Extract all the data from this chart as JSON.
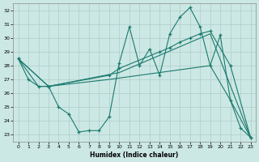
{
  "xlabel": "Humidex (Indice chaleur)",
  "bg_color": "#cce8e4",
  "grid_color": "#b0ccc8",
  "line_color": "#1a7a6e",
  "xlim": [
    -0.5,
    23.5
  ],
  "ylim": [
    22.5,
    32.5
  ],
  "xticks": [
    0,
    1,
    2,
    3,
    4,
    5,
    6,
    7,
    8,
    9,
    10,
    11,
    12,
    13,
    14,
    15,
    16,
    17,
    18,
    19,
    20,
    21,
    22,
    23
  ],
  "yticks": [
    23,
    24,
    25,
    26,
    27,
    28,
    29,
    30,
    31,
    32
  ],
  "line1_x": [
    0,
    1,
    2,
    3,
    4,
    5,
    6,
    7,
    8,
    9,
    10,
    11,
    12,
    13,
    14,
    15,
    16,
    17,
    18,
    19,
    20,
    21,
    22,
    23
  ],
  "line1_y": [
    28.5,
    27.0,
    26.5,
    26.5,
    25.0,
    24.5,
    23.2,
    23.3,
    23.3,
    24.3,
    28.2,
    30.8,
    28.0,
    29.2,
    27.3,
    30.3,
    31.5,
    32.2,
    30.8,
    28.0,
    30.2,
    25.5,
    23.5,
    22.8
  ],
  "line2_x": [
    0,
    2,
    3,
    9,
    19,
    21,
    23
  ],
  "line2_y": [
    28.5,
    26.5,
    26.5,
    27.0,
    28.0,
    25.5,
    22.8
  ],
  "line3_x": [
    0,
    3,
    9,
    10,
    14,
    15,
    16,
    17,
    18,
    19,
    21,
    23
  ],
  "line3_y": [
    28.5,
    26.5,
    27.3,
    27.8,
    29.0,
    29.3,
    29.7,
    30.0,
    30.3,
    30.5,
    28.0,
    22.8
  ],
  "line4_x": [
    0,
    3,
    10,
    19,
    23
  ],
  "line4_y": [
    28.5,
    26.5,
    27.5,
    30.3,
    22.8
  ]
}
